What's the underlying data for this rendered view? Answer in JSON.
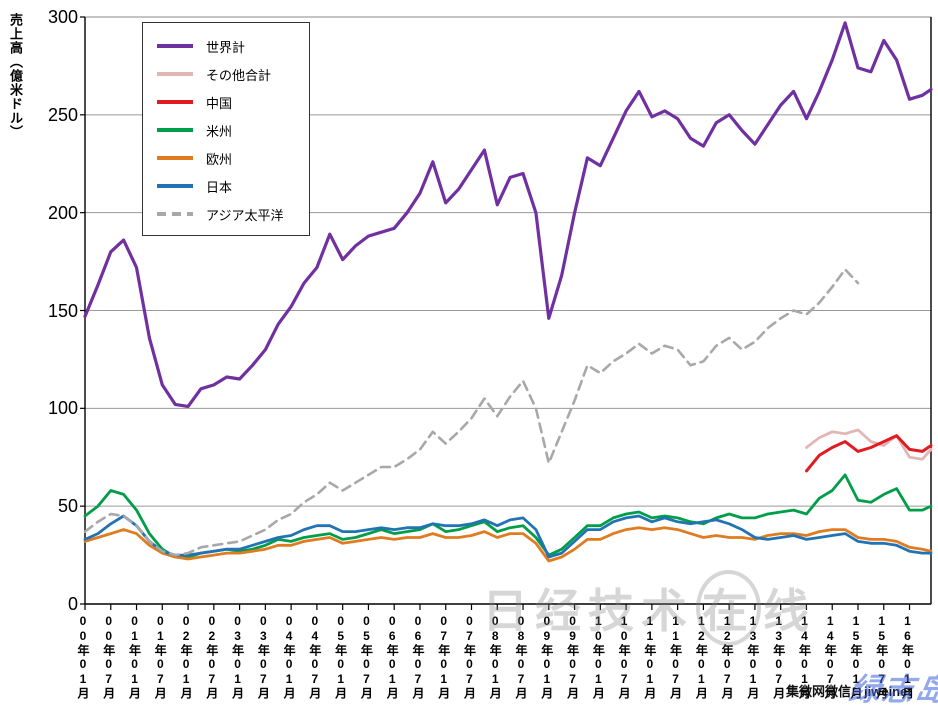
{
  "y_axis_title": "売上高（億米ドル）",
  "watermarks": {
    "center_pre": "日经技术",
    "center_circled": "在",
    "center_post": "线",
    "source": "集微网微信：jiweinet",
    "corner": "绿志岛"
  },
  "chart_data": {
    "type": "line",
    "title": "",
    "xlabel": "",
    "ylabel": "売上高（億米ドル）",
    "ylim": [
      0,
      300
    ],
    "yticks": [
      0,
      50,
      100,
      150,
      200,
      250,
      300
    ],
    "grid": "horizontal-only",
    "legend_position": "top-left-inside",
    "x_unit": "months since 2000-01",
    "x_max": 197,
    "x_tick_interval_months": 6,
    "x_tick_labels": [
      "00年01月",
      "00年07月",
      "01年01月",
      "01年07月",
      "02年01月",
      "02年07月",
      "03年01月",
      "03年07月",
      "04年01月",
      "04年07月",
      "05年01月",
      "05年07月",
      "06年01月",
      "06年07月",
      "07年01月",
      "07年07月",
      "08年01月",
      "08年07月",
      "09年01月",
      "09年07月",
      "10年01月",
      "10年07月",
      "11年01月",
      "11年07月",
      "12年01月",
      "12年07月",
      "13年01月",
      "13年07月",
      "14年01月",
      "14年07月",
      "15年01月",
      "15年07月",
      "16年01月"
    ],
    "x_months": [
      0,
      3,
      6,
      9,
      12,
      15,
      18,
      21,
      24,
      27,
      30,
      33,
      36,
      39,
      42,
      45,
      48,
      51,
      54,
      57,
      60,
      63,
      66,
      69,
      72,
      75,
      78,
      81,
      84,
      87,
      90,
      93,
      96,
      99,
      102,
      105,
      108,
      111,
      114,
      117,
      120,
      123,
      126,
      129,
      132,
      135,
      138,
      141,
      144,
      147,
      150,
      153,
      156,
      159,
      162,
      165,
      168,
      171,
      174,
      177,
      180,
      183,
      186,
      189,
      192,
      195,
      197
    ],
    "series": [
      {
        "name": "世界計",
        "color": "#7030A0",
        "style": "solid",
        "width": 3.2,
        "values": [
          147,
          163,
          180,
          186,
          172,
          136,
          112,
          102,
          101,
          110,
          112,
          116,
          115,
          122,
          130,
          143,
          152,
          164,
          172,
          189,
          176,
          183,
          188,
          190,
          192,
          200,
          210,
          226,
          205,
          212,
          222,
          232,
          204,
          218,
          220,
          200,
          146,
          168,
          200,
          228,
          224,
          238,
          252,
          262,
          249,
          252,
          248,
          238,
          234,
          246,
          250,
          242,
          235,
          245,
          255,
          262,
          248,
          262,
          278,
          297,
          274,
          272,
          288,
          278,
          258,
          260,
          263
        ]
      },
      {
        "name": "その他合計",
        "color": "#E2B6B5",
        "style": "solid",
        "width": 2.8,
        "values": [
          null,
          null,
          null,
          null,
          null,
          null,
          null,
          null,
          null,
          null,
          null,
          null,
          null,
          null,
          null,
          null,
          null,
          null,
          null,
          null,
          null,
          null,
          null,
          null,
          null,
          null,
          null,
          null,
          null,
          null,
          null,
          null,
          null,
          null,
          null,
          null,
          null,
          null,
          null,
          null,
          null,
          null,
          null,
          null,
          null,
          null,
          null,
          null,
          null,
          null,
          null,
          null,
          null,
          null,
          null,
          null,
          80,
          85,
          88,
          87,
          89,
          83,
          81,
          86,
          75,
          74,
          79
        ]
      },
      {
        "name": "中国",
        "color": "#E11B22",
        "style": "solid",
        "width": 3,
        "values": [
          null,
          null,
          null,
          null,
          null,
          null,
          null,
          null,
          null,
          null,
          null,
          null,
          null,
          null,
          null,
          null,
          null,
          null,
          null,
          null,
          null,
          null,
          null,
          null,
          null,
          null,
          null,
          null,
          null,
          null,
          null,
          null,
          null,
          null,
          null,
          null,
          null,
          null,
          null,
          null,
          null,
          null,
          null,
          null,
          null,
          null,
          null,
          null,
          null,
          null,
          null,
          null,
          null,
          null,
          null,
          null,
          68,
          76,
          80,
          83,
          78,
          80,
          83,
          86,
          79,
          78,
          81
        ]
      },
      {
        "name": "米州",
        "color": "#009E49",
        "style": "solid",
        "width": 2.8,
        "values": [
          45,
          50,
          58,
          56,
          48,
          36,
          28,
          24,
          24,
          26,
          27,
          28,
          27,
          28,
          30,
          33,
          32,
          34,
          35,
          36,
          33,
          34,
          36,
          38,
          36,
          37,
          38,
          41,
          37,
          38,
          40,
          42,
          37,
          39,
          40,
          34,
          25,
          28,
          34,
          40,
          40,
          44,
          46,
          47,
          44,
          45,
          44,
          42,
          41,
          44,
          46,
          44,
          44,
          46,
          47,
          48,
          46,
          54,
          58,
          66,
          53,
          52,
          56,
          59,
          48,
          48,
          50
        ]
      },
      {
        "name": "欧州",
        "color": "#E07B20",
        "style": "solid",
        "width": 2.8,
        "values": [
          32,
          34,
          36,
          38,
          36,
          30,
          26,
          24,
          23,
          24,
          25,
          26,
          26,
          27,
          28,
          30,
          30,
          32,
          33,
          34,
          31,
          32,
          33,
          34,
          33,
          34,
          34,
          36,
          34,
          34,
          35,
          37,
          34,
          36,
          36,
          31,
          22,
          24,
          28,
          33,
          33,
          36,
          38,
          39,
          38,
          39,
          38,
          36,
          34,
          35,
          34,
          34,
          33,
          35,
          36,
          36,
          35,
          37,
          38,
          38,
          34,
          33,
          33,
          32,
          29,
          28,
          27
        ]
      },
      {
        "name": "日本",
        "color": "#2173B4",
        "style": "solid",
        "width": 2.8,
        "values": [
          33,
          36,
          41,
          45,
          40,
          32,
          27,
          25,
          25,
          26,
          27,
          28,
          28,
          30,
          32,
          34,
          35,
          38,
          40,
          40,
          37,
          37,
          38,
          39,
          38,
          39,
          39,
          41,
          40,
          40,
          41,
          43,
          40,
          43,
          44,
          38,
          24,
          26,
          32,
          38,
          38,
          42,
          44,
          45,
          42,
          44,
          42,
          41,
          42,
          43,
          41,
          38,
          34,
          33,
          34,
          35,
          33,
          34,
          35,
          36,
          32,
          31,
          31,
          30,
          27,
          26,
          26
        ]
      },
      {
        "name": "アジア太平洋",
        "color": "#A8A8A8",
        "style": "dashed",
        "width": 2.6,
        "values": [
          37,
          42,
          46,
          45,
          40,
          32,
          27,
          25,
          26,
          29,
          30,
          31,
          32,
          35,
          38,
          43,
          46,
          52,
          56,
          62,
          58,
          62,
          66,
          70,
          70,
          74,
          79,
          88,
          82,
          88,
          95,
          105,
          96,
          106,
          114,
          100,
          72,
          88,
          104,
          122,
          118,
          124,
          128,
          133,
          128,
          132,
          130,
          122,
          124,
          132,
          136,
          130,
          134,
          141,
          146,
          150,
          148,
          154,
          162,
          171,
          164,
          null,
          null,
          null,
          null,
          null,
          null
        ]
      }
    ]
  }
}
